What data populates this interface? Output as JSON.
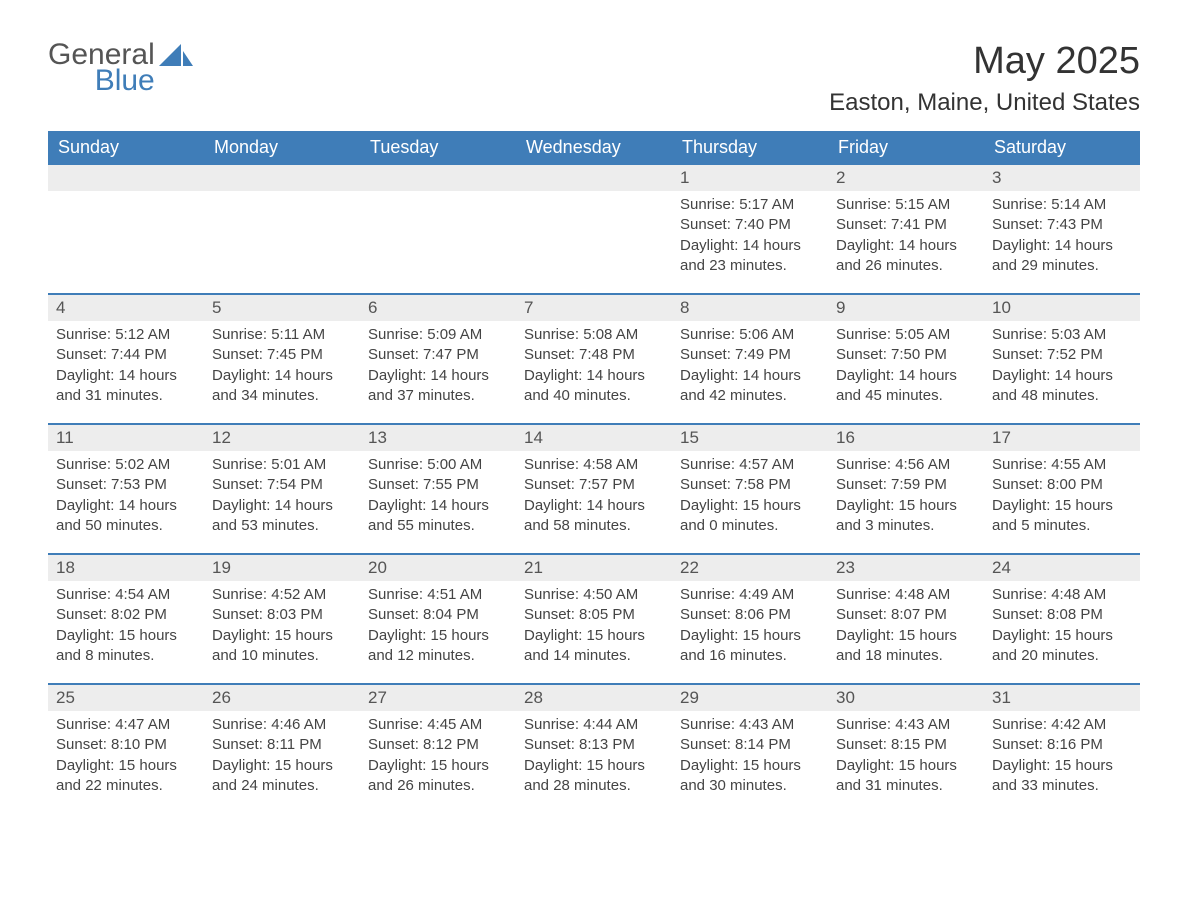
{
  "logo": {
    "general": "General",
    "blue": "Blue"
  },
  "title": "May 2025",
  "location": "Easton, Maine, United States",
  "header_bg": "#3f7db8",
  "daynum_bg": "#ededed",
  "week_border": "#3f7db8",
  "weekdays": [
    "Sunday",
    "Monday",
    "Tuesday",
    "Wednesday",
    "Thursday",
    "Friday",
    "Saturday"
  ],
  "weeks": [
    [
      null,
      null,
      null,
      null,
      {
        "n": "1",
        "sr": "5:17 AM",
        "ss": "7:40 PM",
        "dl": "14 hours and 23 minutes."
      },
      {
        "n": "2",
        "sr": "5:15 AM",
        "ss": "7:41 PM",
        "dl": "14 hours and 26 minutes."
      },
      {
        "n": "3",
        "sr": "5:14 AM",
        "ss": "7:43 PM",
        "dl": "14 hours and 29 minutes."
      }
    ],
    [
      {
        "n": "4",
        "sr": "5:12 AM",
        "ss": "7:44 PM",
        "dl": "14 hours and 31 minutes."
      },
      {
        "n": "5",
        "sr": "5:11 AM",
        "ss": "7:45 PM",
        "dl": "14 hours and 34 minutes."
      },
      {
        "n": "6",
        "sr": "5:09 AM",
        "ss": "7:47 PM",
        "dl": "14 hours and 37 minutes."
      },
      {
        "n": "7",
        "sr": "5:08 AM",
        "ss": "7:48 PM",
        "dl": "14 hours and 40 minutes."
      },
      {
        "n": "8",
        "sr": "5:06 AM",
        "ss": "7:49 PM",
        "dl": "14 hours and 42 minutes."
      },
      {
        "n": "9",
        "sr": "5:05 AM",
        "ss": "7:50 PM",
        "dl": "14 hours and 45 minutes."
      },
      {
        "n": "10",
        "sr": "5:03 AM",
        "ss": "7:52 PM",
        "dl": "14 hours and 48 minutes."
      }
    ],
    [
      {
        "n": "11",
        "sr": "5:02 AM",
        "ss": "7:53 PM",
        "dl": "14 hours and 50 minutes."
      },
      {
        "n": "12",
        "sr": "5:01 AM",
        "ss": "7:54 PM",
        "dl": "14 hours and 53 minutes."
      },
      {
        "n": "13",
        "sr": "5:00 AM",
        "ss": "7:55 PM",
        "dl": "14 hours and 55 minutes."
      },
      {
        "n": "14",
        "sr": "4:58 AM",
        "ss": "7:57 PM",
        "dl": "14 hours and 58 minutes."
      },
      {
        "n": "15",
        "sr": "4:57 AM",
        "ss": "7:58 PM",
        "dl": "15 hours and 0 minutes."
      },
      {
        "n": "16",
        "sr": "4:56 AM",
        "ss": "7:59 PM",
        "dl": "15 hours and 3 minutes."
      },
      {
        "n": "17",
        "sr": "4:55 AM",
        "ss": "8:00 PM",
        "dl": "15 hours and 5 minutes."
      }
    ],
    [
      {
        "n": "18",
        "sr": "4:54 AM",
        "ss": "8:02 PM",
        "dl": "15 hours and 8 minutes."
      },
      {
        "n": "19",
        "sr": "4:52 AM",
        "ss": "8:03 PM",
        "dl": "15 hours and 10 minutes."
      },
      {
        "n": "20",
        "sr": "4:51 AM",
        "ss": "8:04 PM",
        "dl": "15 hours and 12 minutes."
      },
      {
        "n": "21",
        "sr": "4:50 AM",
        "ss": "8:05 PM",
        "dl": "15 hours and 14 minutes."
      },
      {
        "n": "22",
        "sr": "4:49 AM",
        "ss": "8:06 PM",
        "dl": "15 hours and 16 minutes."
      },
      {
        "n": "23",
        "sr": "4:48 AM",
        "ss": "8:07 PM",
        "dl": "15 hours and 18 minutes."
      },
      {
        "n": "24",
        "sr": "4:48 AM",
        "ss": "8:08 PM",
        "dl": "15 hours and 20 minutes."
      }
    ],
    [
      {
        "n": "25",
        "sr": "4:47 AM",
        "ss": "8:10 PM",
        "dl": "15 hours and 22 minutes."
      },
      {
        "n": "26",
        "sr": "4:46 AM",
        "ss": "8:11 PM",
        "dl": "15 hours and 24 minutes."
      },
      {
        "n": "27",
        "sr": "4:45 AM",
        "ss": "8:12 PM",
        "dl": "15 hours and 26 minutes."
      },
      {
        "n": "28",
        "sr": "4:44 AM",
        "ss": "8:13 PM",
        "dl": "15 hours and 28 minutes."
      },
      {
        "n": "29",
        "sr": "4:43 AM",
        "ss": "8:14 PM",
        "dl": "15 hours and 30 minutes."
      },
      {
        "n": "30",
        "sr": "4:43 AM",
        "ss": "8:15 PM",
        "dl": "15 hours and 31 minutes."
      },
      {
        "n": "31",
        "sr": "4:42 AM",
        "ss": "8:16 PM",
        "dl": "15 hours and 33 minutes."
      }
    ]
  ],
  "labels": {
    "sunrise": "Sunrise: ",
    "sunset": "Sunset: ",
    "daylight": "Daylight: "
  }
}
